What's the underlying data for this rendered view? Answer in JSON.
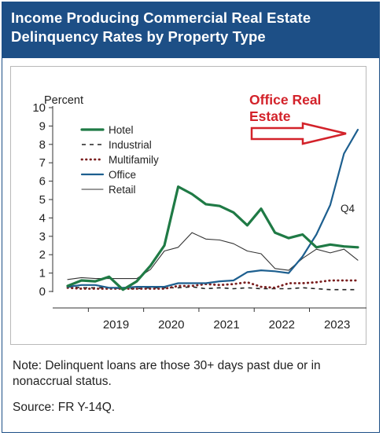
{
  "header": {
    "line1": "Income Producing Commercial Real Estate",
    "line2": "Delinquency Rates by Property Type"
  },
  "note": "Note: Delinquent loans are those 30+ days past due or in nonaccrual status.",
  "source": "Source: FR Y-14Q.",
  "colors": {
    "header_bg": "#1d4f86",
    "hotel": "#1f7a45",
    "industrial": "#222222",
    "multifamily": "#7a1f1f",
    "office": "#1d5f8f",
    "retail": "#333333",
    "annotation": "#d3222a"
  },
  "chart_data": {
    "type": "line",
    "ylabel": "Percent",
    "ylim": [
      0,
      10
    ],
    "yticks": [
      "0",
      "1",
      "2",
      "3",
      "4",
      "5",
      "6",
      "7",
      "8",
      "9",
      "10"
    ],
    "x_ticks": [
      "2019",
      "2020",
      "2021",
      "2022",
      "2023"
    ],
    "x": [
      "2018Q3",
      "2018Q4",
      "2019Q1",
      "2019Q2",
      "2019Q3",
      "2019Q4",
      "2020Q1",
      "2020Q2",
      "2020Q3",
      "2020Q4",
      "2021Q1",
      "2021Q2",
      "2021Q3",
      "2021Q4",
      "2022Q1",
      "2022Q2",
      "2022Q3",
      "2022Q4",
      "2023Q1",
      "2023Q2",
      "2023Q3",
      "2023Q4"
    ],
    "grid": false,
    "legend_position": "top-left",
    "series": [
      {
        "name": "Hotel",
        "style": "solid-thick",
        "values": [
          0.3,
          0.6,
          0.55,
          0.8,
          0.1,
          0.55,
          1.4,
          2.5,
          5.7,
          5.3,
          4.75,
          4.65,
          4.3,
          3.6,
          4.5,
          3.2,
          2.9,
          3.1,
          2.4,
          2.55,
          2.45,
          2.4
        ]
      },
      {
        "name": "Industrial",
        "style": "dashed",
        "values": [
          0.25,
          0.2,
          0.2,
          0.2,
          0.15,
          0.15,
          0.2,
          0.2,
          0.2,
          0.25,
          0.15,
          0.2,
          0.15,
          0.2,
          0.15,
          0.15,
          0.15,
          0.2,
          0.15,
          0.1,
          0.1,
          0.1
        ]
      },
      {
        "name": "Multifamily",
        "style": "dotted",
        "values": [
          0.2,
          0.15,
          0.15,
          0.15,
          0.15,
          0.15,
          0.15,
          0.15,
          0.3,
          0.3,
          0.4,
          0.35,
          0.4,
          0.5,
          0.25,
          0.2,
          0.45,
          0.45,
          0.5,
          0.6,
          0.6,
          0.6
        ]
      },
      {
        "name": "Office",
        "style": "solid",
        "values": [
          0.25,
          0.35,
          0.35,
          0.2,
          0.2,
          0.25,
          0.25,
          0.25,
          0.45,
          0.45,
          0.45,
          0.55,
          0.6,
          1.05,
          1.15,
          1.1,
          1.0,
          1.9,
          3.1,
          4.7,
          7.5,
          8.8
        ]
      },
      {
        "name": "Retail",
        "style": "thin",
        "values": [
          0.65,
          0.75,
          0.7,
          0.7,
          0.7,
          0.7,
          1.2,
          2.2,
          2.4,
          3.2,
          2.85,
          2.8,
          2.6,
          2.2,
          2.05,
          1.25,
          1.15,
          1.8,
          2.3,
          2.1,
          2.3,
          1.7
        ]
      }
    ],
    "annotations": [
      {
        "text": "Office Real",
        "role": "title-line1"
      },
      {
        "text": "Estate",
        "role": "title-line2"
      },
      {
        "text": "Q4",
        "role": "quarter"
      }
    ]
  }
}
